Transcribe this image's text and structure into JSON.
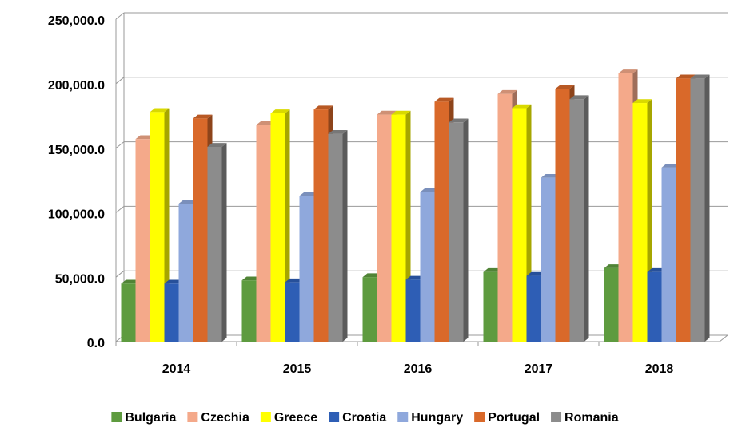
{
  "chart_data": {
    "type": "bar3d",
    "categories": [
      "2014",
      "2015",
      "2016",
      "2017",
      "2018"
    ],
    "series": [
      {
        "name": "Bulgaria",
        "color": "#5e9b3f",
        "values": [
          45000,
          47500,
          50000,
          54000,
          57000
        ]
      },
      {
        "name": "Czechia",
        "color": "#f4a98a",
        "values": [
          157000,
          168000,
          176000,
          192000,
          208000
        ]
      },
      {
        "name": "Greece",
        "color": "#ffff00",
        "values": [
          178000,
          177000,
          176000,
          181000,
          185000
        ]
      },
      {
        "name": "Croatia",
        "color": "#2e5eb5",
        "values": [
          45000,
          46000,
          48000,
          51000,
          54000
        ]
      },
      {
        "name": "Hungary",
        "color": "#8fa8dc",
        "values": [
          107000,
          113000,
          116000,
          127000,
          135000
        ]
      },
      {
        "name": "Portugal",
        "color": "#d9692a",
        "values": [
          173000,
          180000,
          186000,
          196000,
          204000
        ]
      },
      {
        "name": "Romania",
        "color": "#8c8c8c",
        "values": [
          151000,
          161000,
          170000,
          188000,
          204000
        ]
      }
    ],
    "ylim": [
      0,
      250000
    ],
    "yticks": [
      {
        "value": 0,
        "label": "0.0"
      },
      {
        "value": 50000,
        "label": "50,000.0"
      },
      {
        "value": 100000,
        "label": "100,000.0"
      },
      {
        "value": 150000,
        "label": "150,000.0"
      },
      {
        "value": 200000,
        "label": "200,000.0"
      },
      {
        "value": 250000,
        "label": "250,000.0"
      }
    ],
    "grid": true,
    "legend": "bottom"
  }
}
